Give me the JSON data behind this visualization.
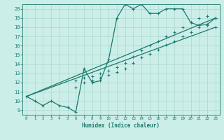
{
  "xlabel": "Humidex (Indice chaleur)",
  "bg_color": "#cceee8",
  "grid_color": "#aad8d0",
  "line_color": "#1a7a6e",
  "spine_color": "#1a7a6e",
  "xlim": [
    -0.5,
    23.5
  ],
  "ylim": [
    8.5,
    20.5
  ],
  "xticks": [
    0,
    1,
    2,
    3,
    4,
    5,
    6,
    7,
    8,
    9,
    10,
    11,
    12,
    13,
    14,
    15,
    16,
    17,
    18,
    19,
    20,
    21,
    22,
    23
  ],
  "yticks": [
    9,
    10,
    11,
    12,
    13,
    14,
    15,
    16,
    17,
    18,
    19,
    20
  ],
  "line1_x": [
    0,
    1,
    2,
    3,
    4,
    5,
    6,
    7,
    8,
    9,
    10,
    11,
    12,
    13,
    14,
    15,
    16,
    17,
    18,
    19,
    20,
    21,
    22,
    23
  ],
  "line1_y": [
    10.5,
    10.0,
    9.5,
    10.0,
    9.5,
    9.3,
    8.8,
    13.5,
    12.0,
    12.2,
    14.5,
    19.0,
    20.5,
    20.0,
    20.5,
    19.5,
    19.5,
    20.0,
    20.0,
    20.0,
    18.5,
    18.2,
    18.3,
    19.0
  ],
  "line2_x": [
    0,
    23
  ],
  "line2_y": [
    10.5,
    19.0
  ],
  "line3_x": [
    0,
    23
  ],
  "line3_y": [
    10.5,
    18.0
  ],
  "marker_x2": [
    6,
    7,
    8,
    9,
    10,
    11,
    12,
    13,
    14,
    15,
    16,
    17,
    18,
    19,
    20,
    21,
    22,
    23
  ],
  "marker_y2": [
    12.2,
    12.5,
    12.7,
    13.0,
    13.3,
    13.7,
    14.1,
    14.8,
    15.5,
    16.0,
    16.5,
    17.0,
    17.5,
    18.0,
    18.5,
    19.0,
    19.2,
    19.0
  ],
  "marker_x3": [
    6,
    7,
    8,
    9,
    10,
    11,
    12,
    13,
    14,
    15,
    16,
    17,
    18,
    19,
    20,
    21,
    22,
    23
  ],
  "marker_y3": [
    11.5,
    12.0,
    12.2,
    12.5,
    12.8,
    13.1,
    13.5,
    14.1,
    14.7,
    15.1,
    15.6,
    16.1,
    16.5,
    17.0,
    17.5,
    18.0,
    18.2,
    18.0
  ]
}
